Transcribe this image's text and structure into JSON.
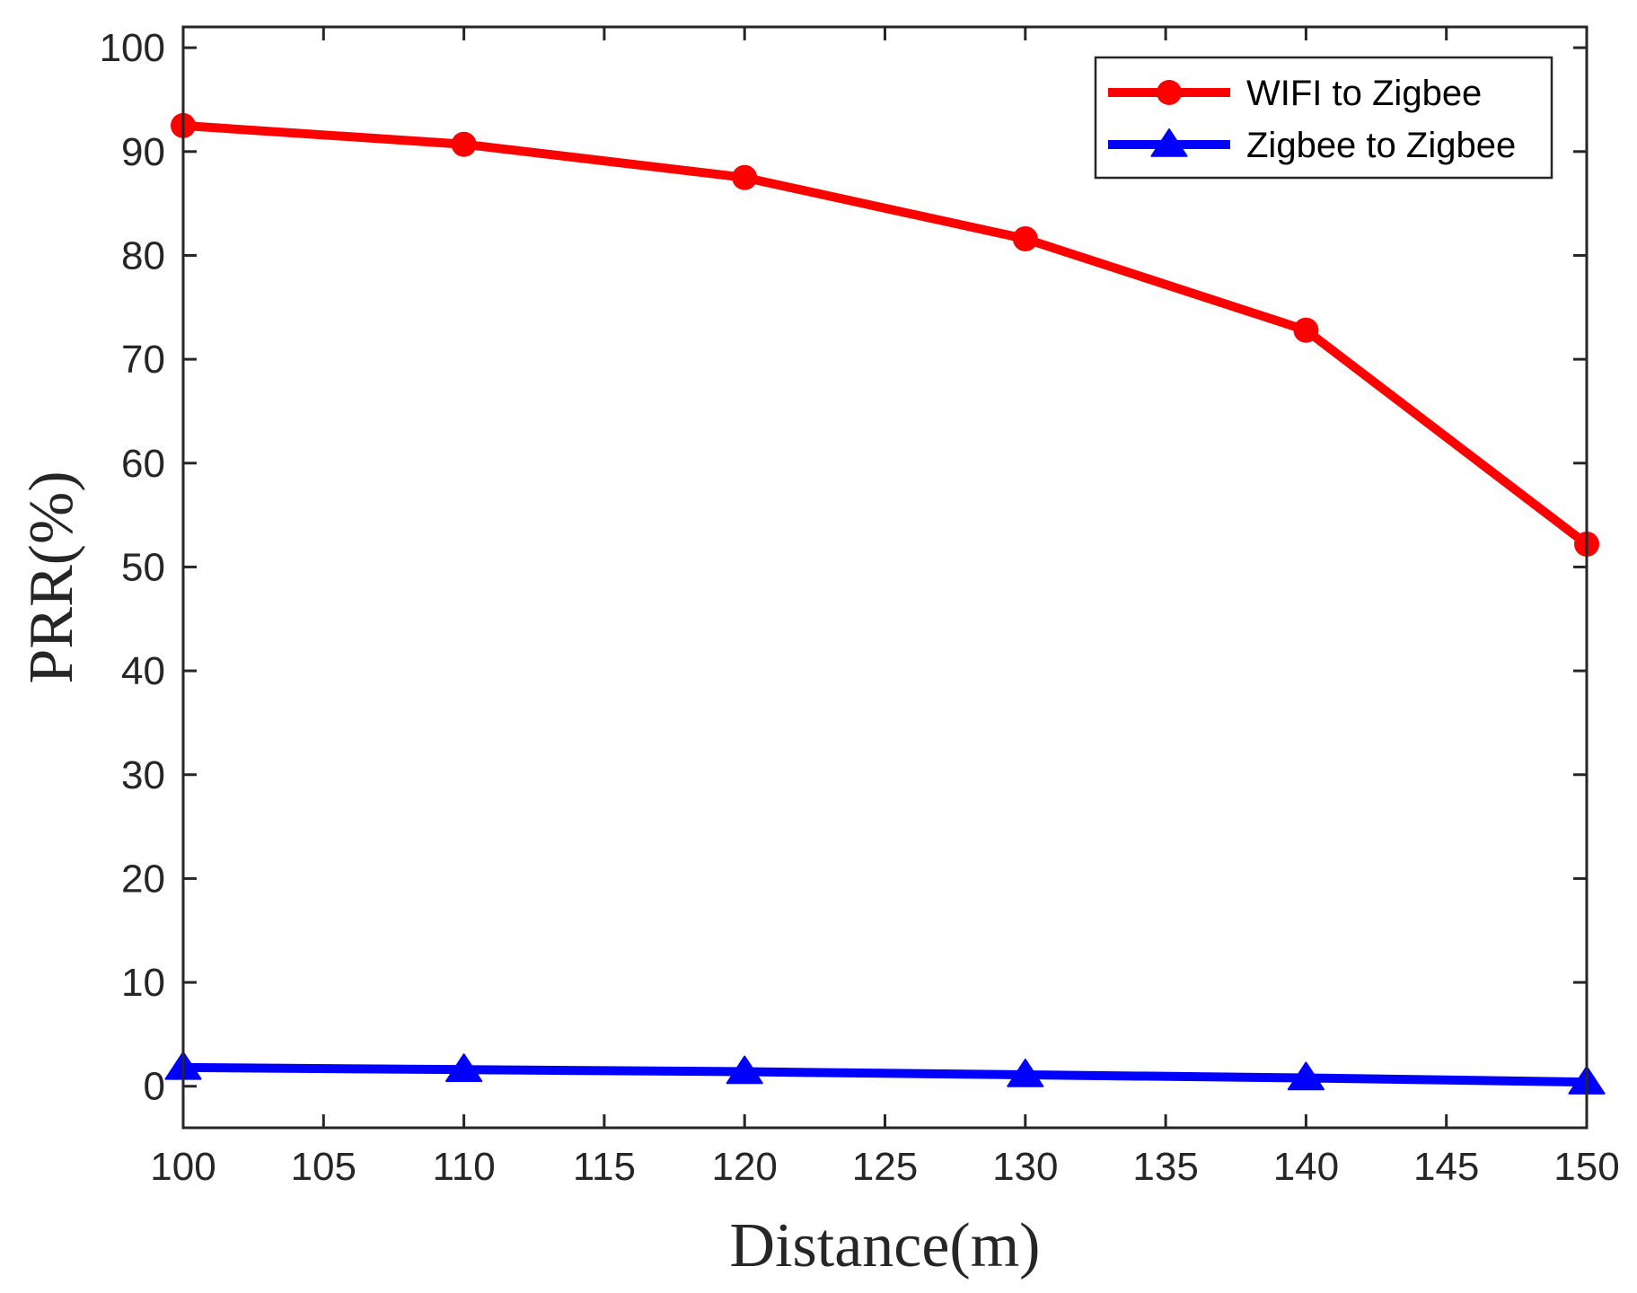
{
  "chart_data": {
    "type": "line",
    "title": "",
    "xlabel": "Distance(m)",
    "ylabel": "PRR(%)",
    "xlim": [
      100,
      150
    ],
    "ylim": [
      -4,
      102
    ],
    "xticks": [
      100,
      105,
      110,
      115,
      120,
      125,
      130,
      135,
      140,
      145,
      150
    ],
    "yticks": [
      0,
      10,
      20,
      30,
      40,
      50,
      60,
      70,
      80,
      90,
      100
    ],
    "grid": false,
    "legend_position": "top-right",
    "x": [
      100,
      110,
      120,
      130,
      140,
      150
    ],
    "series": [
      {
        "name": "WIFI to Zigbee",
        "color": "#ff0000",
        "marker": "circle",
        "values": [
          92.5,
          90.7,
          87.5,
          81.6,
          72.8,
          52.2
        ]
      },
      {
        "name": "Zigbee to Zigbee",
        "color": "#0000ff",
        "marker": "triangle",
        "values": [
          1.8,
          1.6,
          1.4,
          1.1,
          0.8,
          0.4
        ]
      }
    ]
  }
}
